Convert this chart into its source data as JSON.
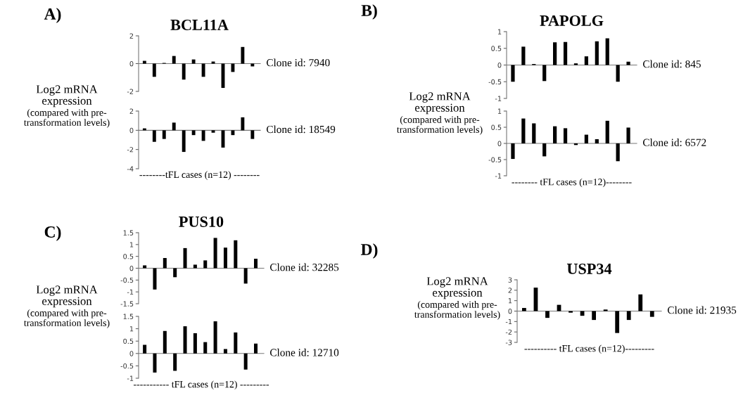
{
  "chart_data": [
    {
      "type": "bar",
      "title": "BCL11A",
      "ylabel": "Log2 mRNA\nexpression\n(compared with pre-\ntransformation levels)",
      "annotations": [
        "Clone id: 7940",
        "A)"
      ],
      "categories": [
        null,
        null,
        null,
        null,
        null,
        null,
        null,
        null,
        null,
        null,
        null,
        null
      ],
      "color": "#000000",
      "ylim": [
        -2,
        2
      ],
      "yticks": [
        -2,
        0,
        2
      ],
      "values": [
        0.2,
        -0.95,
        0.05,
        0.55,
        -1.15,
        0.3,
        -0.95,
        0.15,
        -1.75,
        -0.6,
        1.2,
        -0.2
      ]
    },
    {
      "type": "bar",
      "xlabel": "--------tFL cases (n=12) --------",
      "annotations": [
        "Clone id: 18549"
      ],
      "categories": [
        null,
        null,
        null,
        null,
        null,
        null,
        null,
        null,
        null,
        null,
        null,
        null
      ],
      "color": "#000000",
      "ylim": [
        -4,
        2
      ],
      "yticks": [
        -4,
        -2,
        0,
        2
      ],
      "values": [
        0.2,
        -1.2,
        -0.9,
        0.8,
        -2.25,
        -0.5,
        -1.1,
        -0.25,
        -1.8,
        -0.5,
        1.35,
        -0.9
      ]
    },
    {
      "type": "bar",
      "title": "PAPOLG",
      "ylabel": "Log2 mRNA\nexpression\n(compared with pre-\ntransformation levels)",
      "annotations": [
        "Clone id: 845",
        "B)"
      ],
      "categories": [
        null,
        null,
        null,
        null,
        null,
        null,
        null,
        null,
        null,
        null,
        null,
        null
      ],
      "color": "#000000",
      "ylim": [
        -1,
        1
      ],
      "yticks": [
        -1,
        -0.5,
        0,
        0.5,
        1
      ],
      "values": [
        -0.5,
        0.55,
        0.03,
        -0.48,
        0.68,
        0.69,
        0.05,
        0.26,
        0.71,
        0.8,
        -0.5,
        0.1
      ]
    },
    {
      "type": "bar",
      "xlabel": "-------- tFL cases (n=12)--------",
      "annotations": [
        "Clone id: 6572"
      ],
      "categories": [
        null,
        null,
        null,
        null,
        null,
        null,
        null,
        null,
        null,
        null,
        null,
        null
      ],
      "color": "#000000",
      "ylim": [
        -1,
        1
      ],
      "yticks": [
        -1,
        -0.5,
        0,
        0.5,
        1
      ],
      "values": [
        -0.48,
        0.77,
        0.62,
        -0.4,
        0.53,
        0.47,
        -0.05,
        0.27,
        0.13,
        0.7,
        -0.55,
        0.49
      ]
    },
    {
      "type": "bar",
      "title": "PUS10",
      "ylabel": "Log2 mRNA\nexpression\n(compared with pre-\ntransformation levels)",
      "annotations": [
        "Clone id: 32285",
        "C)"
      ],
      "categories": [
        null,
        null,
        null,
        null,
        null,
        null,
        null,
        null,
        null,
        null,
        null,
        null
      ],
      "color": "#000000",
      "ylim": [
        -1.5,
        1.5
      ],
      "yticks": [
        -1.5,
        -1,
        -0.5,
        0,
        0.5,
        1,
        1.5
      ],
      "values": [
        0.12,
        -0.9,
        0.43,
        -0.38,
        0.85,
        0.15,
        0.33,
        1.28,
        0.87,
        1.18,
        -0.65,
        0.4
      ]
    },
    {
      "type": "bar",
      "xlabel": "----------- tFL cases (n=12) ---------",
      "annotations": [
        "Clone id: 12710"
      ],
      "categories": [
        null,
        null,
        null,
        null,
        null,
        null,
        null,
        null,
        null,
        null,
        null,
        null
      ],
      "color": "#000000",
      "ylim": [
        -1,
        1.5
      ],
      "yticks": [
        -1,
        -0.5,
        0,
        0.5,
        1,
        1.5
      ],
      "values": [
        0.35,
        -0.77,
        0.91,
        -0.7,
        1.1,
        0.82,
        0.46,
        1.3,
        0.18,
        0.85,
        -0.65,
        0.4
      ]
    },
    {
      "type": "bar",
      "title": "USP34",
      "ylabel": "Log2 mRNA\nexpression\n(compared with pre-\ntransformation levels)",
      "xlabel": "---------- tFL cases (n=12)---------",
      "annotations": [
        "Clone id: 21935",
        "D)"
      ],
      "categories": [
        null,
        null,
        null,
        null,
        null,
        null,
        null,
        null,
        null,
        null,
        null,
        null
      ],
      "color": "#000000",
      "ylim": [
        -3,
        3
      ],
      "yticks": [
        -3,
        -2,
        -1,
        0,
        1,
        2,
        3
      ],
      "values": [
        0.3,
        2.25,
        -0.65,
        0.6,
        -0.15,
        -0.45,
        -0.85,
        0.15,
        -2.1,
        -0.85,
        1.6,
        -0.55
      ]
    }
  ]
}
